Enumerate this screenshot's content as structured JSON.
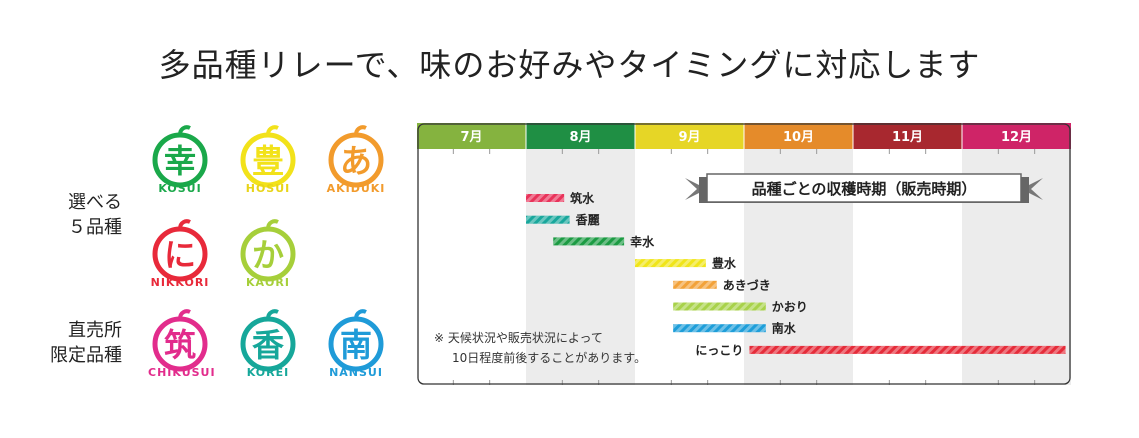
{
  "title": "多品種リレーで、味のお好みやタイミングに対応します",
  "groups": {
    "regular": {
      "label_line1": "選べる",
      "label_line2": "５品種"
    },
    "limited": {
      "label_line1": "直売所",
      "label_line2": "限定品種"
    }
  },
  "logos": [
    {
      "char": "幸",
      "name": "KOSUI",
      "color": "#1aa84a",
      "icon": "kosui-logo"
    },
    {
      "char": "豊",
      "name": "HOSUI",
      "color": "#f2e21a",
      "icon": "hosui-logo"
    },
    {
      "char": "あ",
      "name": "AKIDUKI",
      "color": "#f29b2c",
      "icon": "akiduki-logo"
    },
    {
      "char": "に",
      "name": "NIKKORI",
      "color": "#e8293a",
      "icon": "nikkori-logo"
    },
    {
      "char": "か",
      "name": "KAORI",
      "color": "#a6cf3a",
      "icon": "kaori-logo"
    },
    {
      "char": "筑",
      "name": "CHIKUSUI",
      "color": "#e22c8c",
      "icon": "chikusui-logo"
    },
    {
      "char": "香",
      "name": "KOREI",
      "color": "#16a79a",
      "icon": "korei-logo"
    },
    {
      "char": "南",
      "name": "NANSUI",
      "color": "#1f9bd8",
      "icon": "nansui-logo"
    }
  ],
  "chart_data": {
    "type": "bar",
    "title": "品種ごとの収穫時期（販売時期）",
    "categories": [
      "7月",
      "8月",
      "9月",
      "10月",
      "11月",
      "12月"
    ],
    "month_colors": [
      "#85b33f",
      "#1f8f44",
      "#e6d626",
      "#e58b2a",
      "#a8282f",
      "#cf2467"
    ],
    "series": [
      {
        "name": "筑水",
        "start": 2.0,
        "end": 2.35,
        "color": "#e8335a"
      },
      {
        "name": "香麗",
        "start": 2.0,
        "end": 2.4,
        "color": "#19a79c"
      },
      {
        "name": "幸水",
        "start": 2.25,
        "end": 2.9,
        "color": "#1c9b43"
      },
      {
        "name": "豊水",
        "start": 3.0,
        "end": 3.65,
        "color": "#f0e51a"
      },
      {
        "name": "あきづき",
        "start": 3.35,
        "end": 3.75,
        "color": "#f2a23a"
      },
      {
        "name": "かおり",
        "start": 3.35,
        "end": 4.2,
        "color": "#a8d24a"
      },
      {
        "name": "南水",
        "start": 3.35,
        "end": 4.2,
        "color": "#1e9ed9"
      },
      {
        "name": "にっこり",
        "start": 4.05,
        "end": 6.95,
        "color": "#e52c3a"
      }
    ]
  },
  "note": {
    "line1": "※ 天候状況や販売状況によって",
    "line2": "10日程度前後することがあります。"
  }
}
